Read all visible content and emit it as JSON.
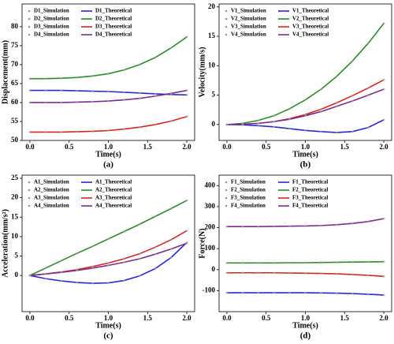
{
  "chart_data": [
    {
      "type": "line",
      "caption": "(a)",
      "xlabel": "Time(s)",
      "ylabel": "Displacement(mm)",
      "x": [
        0,
        0.2,
        0.4,
        0.6,
        0.8,
        1.0,
        1.2,
        1.4,
        1.6,
        1.8,
        2.0
      ],
      "xlim": [
        -0.1,
        2.1
      ],
      "xticks": [
        {
          "value": 0,
          "label": "0.0"
        },
        0.5,
        {
          "value": 1,
          "label": "1.0"
        },
        1.5,
        {
          "value": 2,
          "label": "2.0"
        }
      ],
      "ylim": [
        50,
        86
      ],
      "yticks": [
        50,
        55,
        60,
        65,
        70,
        75,
        80
      ],
      "series": [
        {
          "name": "D1_Simulation",
          "style": "dots",
          "color": "#9a9a9a",
          "values": [
            63.2,
            63.2,
            63.2,
            63.1,
            63.0,
            62.9,
            62.7,
            62.5,
            62.3,
            62.1,
            62.0
          ]
        },
        {
          "name": "D2_Simulation",
          "style": "dots",
          "color": "#9a9a9a",
          "values": [
            66.3,
            66.3,
            66.4,
            66.6,
            67.0,
            67.6,
            68.6,
            70.0,
            71.9,
            74.4,
            77.3
          ]
        },
        {
          "name": "D3_Simulation",
          "style": "dots",
          "color": "#9a9a9a",
          "values": [
            52.2,
            52.2,
            52.2,
            52.3,
            52.4,
            52.6,
            53.0,
            53.5,
            54.2,
            55.1,
            56.3
          ]
        },
        {
          "name": "D4_Simulation",
          "style": "dots",
          "color": "#9a9a9a",
          "values": [
            60.0,
            60.0,
            60.0,
            60.1,
            60.2,
            60.4,
            60.7,
            61.1,
            61.7,
            62.4,
            63.2
          ]
        },
        {
          "name": "D1_Theoretical",
          "style": "line",
          "color": "#2a2ad0",
          "values": [
            63.2,
            63.2,
            63.2,
            63.1,
            63.0,
            62.9,
            62.7,
            62.5,
            62.3,
            62.1,
            62.0
          ]
        },
        {
          "name": "D2_Theoretical",
          "style": "line",
          "color": "#2e8b2e",
          "values": [
            66.3,
            66.3,
            66.4,
            66.6,
            67.0,
            67.6,
            68.6,
            70.0,
            71.9,
            74.4,
            77.3
          ]
        },
        {
          "name": "D3_Theoretical",
          "style": "line",
          "color": "#d62728",
          "values": [
            52.2,
            52.2,
            52.2,
            52.3,
            52.4,
            52.6,
            53.0,
            53.5,
            54.2,
            55.1,
            56.3
          ]
        },
        {
          "name": "D4_Theoretical",
          "style": "line",
          "color": "#7b2d8e",
          "values": [
            60.0,
            60.0,
            60.0,
            60.1,
            60.2,
            60.4,
            60.7,
            61.1,
            61.7,
            62.4,
            63.2
          ]
        }
      ]
    },
    {
      "type": "line",
      "caption": "(b)",
      "xlabel": "Time(s)",
      "ylabel": "Velocity(mm/s)",
      "x": [
        0,
        0.2,
        0.4,
        0.6,
        0.8,
        1.0,
        1.2,
        1.4,
        1.6,
        1.8,
        2.0
      ],
      "xlim": [
        -0.1,
        2.1
      ],
      "xticks": [
        {
          "value": 0,
          "label": "0.0"
        },
        0.5,
        {
          "value": 1,
          "label": "1.0"
        },
        1.5,
        {
          "value": 2,
          "label": "2.0"
        }
      ],
      "ylim": [
        -2.7,
        20.5
      ],
      "yticks": [
        0,
        5,
        10,
        15,
        20
      ],
      "series": [
        {
          "name": "V1_Simulation",
          "style": "dots",
          "color": "#9a9a9a",
          "values": [
            0,
            -0.05,
            -0.2,
            -0.4,
            -0.7,
            -1.0,
            -1.2,
            -1.35,
            -1.2,
            -0.5,
            0.8
          ]
        },
        {
          "name": "V2_Simulation",
          "style": "dots",
          "color": "#9a9a9a",
          "values": [
            0,
            0.2,
            0.7,
            1.5,
            2.7,
            4.2,
            6.0,
            8.2,
            10.8,
            13.8,
            17.2
          ]
        },
        {
          "name": "V3_Simulation",
          "style": "dots",
          "color": "#9a9a9a",
          "values": [
            0,
            0.05,
            0.2,
            0.5,
            1.0,
            1.7,
            2.6,
            3.7,
            4.9,
            6.2,
            7.6
          ]
        },
        {
          "name": "V4_Simulation",
          "style": "dots",
          "color": "#9a9a9a",
          "values": [
            0,
            0.05,
            0.2,
            0.5,
            0.9,
            1.5,
            2.2,
            3.1,
            4.0,
            5.0,
            6.0
          ]
        },
        {
          "name": "V1_Theoretical",
          "style": "line",
          "color": "#2a2ad0",
          "values": [
            0,
            -0.05,
            -0.2,
            -0.4,
            -0.7,
            -1.0,
            -1.2,
            -1.35,
            -1.2,
            -0.5,
            0.8
          ]
        },
        {
          "name": "V2_Theoretical",
          "style": "line",
          "color": "#2e8b2e",
          "values": [
            0,
            0.2,
            0.7,
            1.5,
            2.7,
            4.2,
            6.0,
            8.2,
            10.8,
            13.8,
            17.2
          ]
        },
        {
          "name": "V3_Theoretical",
          "style": "line",
          "color": "#d62728",
          "values": [
            0,
            0.05,
            0.2,
            0.5,
            1.0,
            1.7,
            2.6,
            3.7,
            4.9,
            6.2,
            7.6
          ]
        },
        {
          "name": "V4_Theoretical",
          "style": "line",
          "color": "#7b2d8e",
          "values": [
            0,
            0.05,
            0.2,
            0.5,
            0.9,
            1.5,
            2.2,
            3.1,
            4.0,
            5.0,
            6.0
          ]
        }
      ]
    },
    {
      "type": "line",
      "caption": "(c)",
      "xlabel": "Time(s)",
      "ylabel": "Acceleration(mm/s²)",
      "x": [
        0,
        0.2,
        0.4,
        0.6,
        0.8,
        1.0,
        1.2,
        1.4,
        1.6,
        1.8,
        2.0
      ],
      "xlim": [
        -0.1,
        2.1
      ],
      "xticks": [
        {
          "value": 0,
          "label": "0.0"
        },
        0.5,
        {
          "value": 1,
          "label": "1.0"
        },
        1.5,
        {
          "value": 2,
          "label": "2.0"
        }
      ],
      "ylim": [
        -9.3,
        25.8
      ],
      "yticks": [
        0,
        5,
        10,
        15,
        20,
        25
      ],
      "series": [
        {
          "name": "A1_Simulation",
          "style": "dots",
          "color": "#9a9a9a",
          "values": [
            0,
            -0.8,
            -1.4,
            -1.8,
            -2.0,
            -1.9,
            -1.3,
            -0.1,
            1.8,
            4.6,
            8.5
          ]
        },
        {
          "name": "A2_Simulation",
          "style": "dots",
          "color": "#9a9a9a",
          "values": [
            0,
            1.9,
            3.8,
            5.7,
            7.5,
            9.4,
            11.3,
            13.2,
            15.2,
            17.2,
            19.3
          ]
        },
        {
          "name": "A3_Simulation",
          "style": "dots",
          "color": "#9a9a9a",
          "values": [
            0,
            0.4,
            0.9,
            1.5,
            2.3,
            3.2,
            4.3,
            5.6,
            7.3,
            9.2,
            11.5
          ]
        },
        {
          "name": "A4_Simulation",
          "style": "dots",
          "color": "#9a9a9a",
          "values": [
            0,
            0.4,
            0.8,
            1.3,
            1.9,
            2.6,
            3.4,
            4.3,
            5.5,
            6.8,
            8.3
          ]
        },
        {
          "name": "A1_Theoretical",
          "style": "line",
          "color": "#2a2ad0",
          "values": [
            0,
            -0.8,
            -1.4,
            -1.8,
            -2.0,
            -1.9,
            -1.3,
            -0.1,
            1.8,
            4.6,
            8.5
          ]
        },
        {
          "name": "A2_Theoretical",
          "style": "line",
          "color": "#2e8b2e",
          "values": [
            0,
            1.9,
            3.8,
            5.7,
            7.5,
            9.4,
            11.3,
            13.2,
            15.2,
            17.2,
            19.3
          ]
        },
        {
          "name": "A3_Theoretical",
          "style": "line",
          "color": "#d62728",
          "values": [
            0,
            0.4,
            0.9,
            1.5,
            2.3,
            3.2,
            4.3,
            5.6,
            7.3,
            9.2,
            11.5
          ]
        },
        {
          "name": "A4_Theoretical",
          "style": "line",
          "color": "#7b2d8e",
          "values": [
            0,
            0.4,
            0.8,
            1.3,
            1.9,
            2.6,
            3.4,
            4.3,
            5.5,
            6.8,
            8.3
          ]
        }
      ]
    },
    {
      "type": "line",
      "caption": "(d)",
      "xlabel": "Time(s)",
      "ylabel": "Force(N)",
      "x": [
        0,
        0.2,
        0.4,
        0.6,
        0.8,
        1.0,
        1.2,
        1.4,
        1.6,
        1.8,
        2.0
      ],
      "xlim": [
        -0.1,
        2.1
      ],
      "xticks": [
        {
          "value": 0,
          "label": "0.0"
        },
        0.5,
        {
          "value": 1,
          "label": "1.0"
        },
        1.5,
        {
          "value": 2,
          "label": "2.0"
        }
      ],
      "ylim": [
        -200,
        450
      ],
      "yticks": [
        -100,
        0,
        100,
        200,
        300,
        400
      ],
      "series": [
        {
          "name": "F1_Simulation",
          "style": "dots",
          "color": "#9a9a9a",
          "values": [
            -110,
            -110,
            -110,
            -110,
            -110,
            -110,
            -111,
            -112,
            -114,
            -117,
            -121
          ]
        },
        {
          "name": "F2_Simulation",
          "style": "dots",
          "color": "#9a9a9a",
          "values": [
            32,
            32,
            32,
            32,
            33,
            33,
            34,
            35,
            36,
            37,
            38
          ]
        },
        {
          "name": "F3_Simulation",
          "style": "dots",
          "color": "#9a9a9a",
          "values": [
            -15,
            -15,
            -15,
            -15,
            -16,
            -17,
            -18,
            -20,
            -23,
            -27,
            -32
          ]
        },
        {
          "name": "F4_Simulation",
          "style": "dots",
          "color": "#9a9a9a",
          "values": [
            205,
            205,
            205,
            206,
            207,
            208,
            210,
            214,
            220,
            229,
            243
          ]
        },
        {
          "name": "F1_Theoretical",
          "style": "line",
          "color": "#2a2ad0",
          "values": [
            -110,
            -110,
            -110,
            -110,
            -110,
            -110,
            -111,
            -112,
            -114,
            -117,
            -121
          ]
        },
        {
          "name": "F2_Theoretical",
          "style": "line",
          "color": "#2e8b2e",
          "values": [
            32,
            32,
            32,
            32,
            33,
            33,
            34,
            35,
            36,
            37,
            38
          ]
        },
        {
          "name": "F3_Theoretical",
          "style": "line",
          "color": "#d62728",
          "values": [
            -15,
            -15,
            -15,
            -15,
            -16,
            -17,
            -18,
            -20,
            -23,
            -27,
            -32
          ]
        },
        {
          "name": "F4_Theoretical",
          "style": "line",
          "color": "#7b2d8e",
          "values": [
            205,
            205,
            205,
            206,
            207,
            208,
            210,
            214,
            220,
            229,
            243
          ]
        }
      ]
    }
  ]
}
